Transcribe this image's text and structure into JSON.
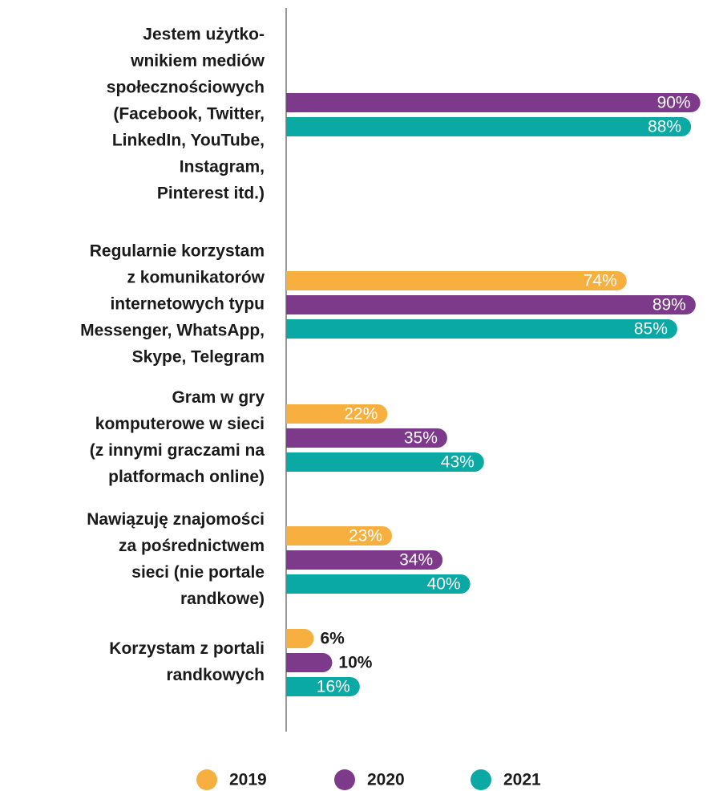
{
  "chart_data": {
    "type": "barh",
    "categories": [
      [
        "Jestem użytko-",
        "wnikiem mediów",
        "społecznościowych",
        "(Facebook, Twitter,",
        "LinkedIn, YouTube,",
        "Instagram,",
        "Pinterest itd.)"
      ],
      [
        "Regularnie korzystam",
        "z komunikatorów",
        "internetowych typu",
        "Messenger, WhatsApp,",
        "Skype, Telegram"
      ],
      [
        "Gram w gry",
        "komputerowe w sieci",
        "(z innymi graczami na",
        "platformach online)"
      ],
      [
        "Nawiązuję znajomości",
        "za pośrednictwem",
        "sieci (nie portale",
        "randkowe)"
      ],
      [
        "Korzystam z portali",
        "randkowych"
      ]
    ],
    "series": [
      {
        "name": "2019",
        "color": "#f7b040",
        "values": [
          null,
          74,
          22,
          23,
          6
        ],
        "value_labels": [
          null,
          "74%",
          "22%",
          "23%",
          "6%"
        ]
      },
      {
        "name": "2020",
        "color": "#7e3a8a",
        "values": [
          90,
          89,
          35,
          34,
          10
        ],
        "value_labels": [
          "90%",
          "89%",
          "35%",
          "34%",
          "10%"
        ]
      },
      {
        "name": "2021",
        "color": "#0aa9a4",
        "values": [
          88,
          85,
          43,
          40,
          16
        ],
        "value_labels": [
          "88%",
          "85%",
          "43%",
          "40%",
          "16%"
        ]
      }
    ],
    "xlim": [
      0,
      100
    ]
  }
}
